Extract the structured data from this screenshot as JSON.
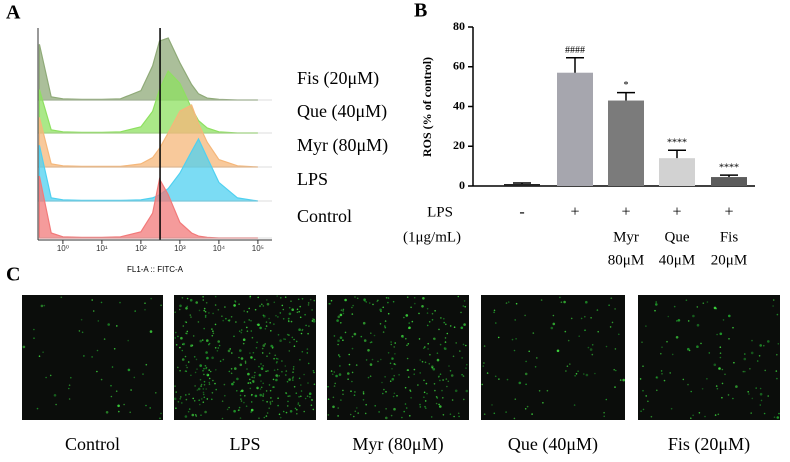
{
  "panel_labels": [
    "A",
    "B",
    "C"
  ],
  "chart_data": [
    {
      "type": "area",
      "xlabel": "FL1-A :: FITC-A",
      "log_x": true,
      "xlim": [
        0.23,
        230000
      ],
      "xticks": [
        {
          "value": 1,
          "label": "10⁰"
        },
        {
          "value": 10,
          "label": "10¹"
        },
        {
          "value": 100,
          "label": "10²"
        },
        {
          "value": 1000,
          "label": "10³"
        },
        {
          "value": 10000,
          "label": "10⁴"
        },
        {
          "value": 100000,
          "label": "10⁵"
        }
      ],
      "ylim": [
        0,
        100
      ],
      "reference_line": 310,
      "x": [
        0.25,
        0.5,
        1,
        3,
        10,
        30,
        100,
        200,
        300,
        500,
        1000,
        2000,
        3000,
        5000,
        10000,
        30000,
        100000
      ],
      "series": [
        {
          "name": "Fis (20μM)",
          "color": "#8faa78",
          "values": [
            90,
            5,
            2,
            1,
            1,
            2,
            15,
            55,
            95,
            100,
            60,
            25,
            10,
            3,
            1,
            0,
            0
          ]
        },
        {
          "name": "Que (40μM)",
          "color": "#8ee060",
          "values": [
            70,
            5,
            2,
            1,
            1,
            2,
            10,
            35,
            70,
            100,
            80,
            40,
            20,
            8,
            2,
            0,
            0
          ]
        },
        {
          "name": "Myr (80μM)",
          "color": "#f5b77a",
          "values": [
            80,
            5,
            2,
            1,
            1,
            1,
            5,
            15,
            30,
            55,
            90,
            100,
            70,
            40,
            12,
            2,
            0
          ]
        },
        {
          "name": "LPS",
          "color": "#4fd0f0",
          "values": [
            90,
            5,
            2,
            1,
            1,
            1,
            2,
            5,
            10,
            20,
            45,
            80,
            100,
            70,
            30,
            5,
            0
          ]
        },
        {
          "name": "Control",
          "color": "#f27a7a",
          "values": [
            100,
            8,
            2,
            1,
            1,
            2,
            10,
            40,
            95,
            70,
            25,
            8,
            3,
            1,
            0,
            0,
            0
          ]
        }
      ]
    },
    {
      "type": "bar",
      "ylabel": "ROS (% of control)",
      "ylim": [
        0,
        80
      ],
      "yticks": [
        0,
        20,
        40,
        60,
        80
      ],
      "row_labels": [
        "LPS",
        "(1μg/mL)"
      ],
      "categories": [
        "-",
        "+",
        "+",
        "+",
        "+"
      ],
      "treatment_labels": [
        null,
        null,
        "Myr",
        "Que",
        "Fis"
      ],
      "dose_labels": [
        null,
        null,
        "80μM",
        "40μM",
        "20μM"
      ],
      "values": [
        1,
        57,
        43,
        14,
        4.5
      ],
      "errors": [
        0.5,
        7.5,
        4,
        4,
        1
      ],
      "significance": [
        null,
        "####",
        "*",
        "****",
        "****"
      ],
      "colors": [
        "#222222",
        "#a6a6ae",
        "#7b7b7b",
        "#d2d2d2",
        "#5c5c5c"
      ]
    }
  ],
  "micrographs": {
    "labels": [
      "Control",
      "LPS",
      "Myr (80μM)",
      "Que (40μM)",
      "Fis (20μM)"
    ]
  }
}
